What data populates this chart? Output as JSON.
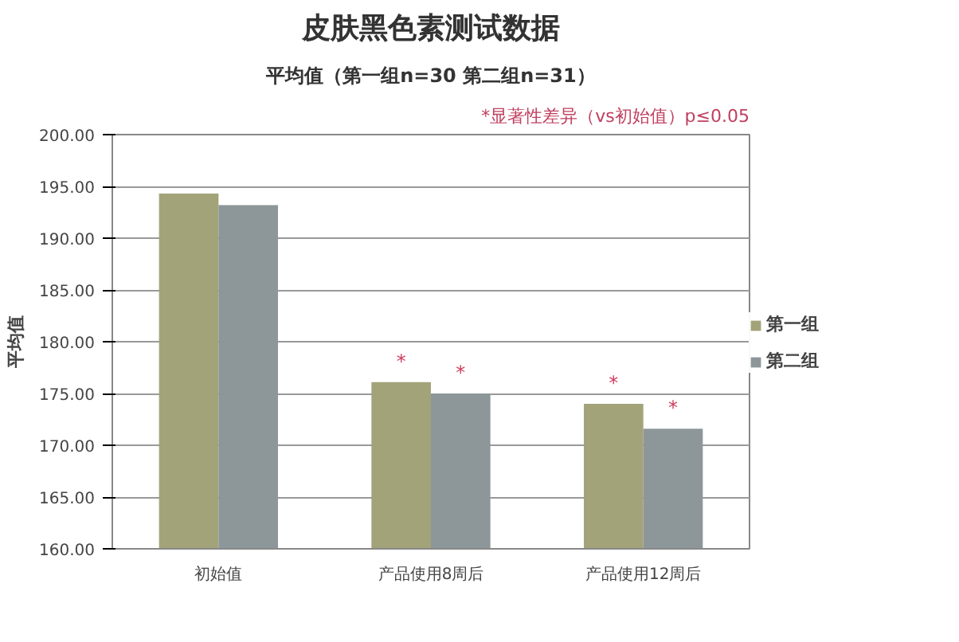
{
  "chart_data": {
    "type": "bar",
    "title": "皮肤黑色素测试数据",
    "subtitle": "平均值（第一组n=30 第二组n=31）",
    "ylabel": "平均值",
    "annotations": [
      "*显著性差异（vs初始值）p≤0.05"
    ],
    "categories": [
      "初始值",
      "产品使用8周后",
      "产品使用12周后"
    ],
    "series": [
      {
        "name": "第一组",
        "color": "#a3a37a",
        "values": [
          194.3,
          176.1,
          174.0
        ],
        "value_labels": [
          null,
          "*",
          "*"
        ]
      },
      {
        "name": "第二组",
        "color": "#8d979a",
        "values": [
          193.2,
          175.0,
          171.6
        ],
        "value_labels": [
          null,
          "*",
          "*"
        ]
      }
    ],
    "ylim": [
      160,
      200
    ],
    "yticks": [
      {
        "value": 160,
        "label": "160.00"
      },
      {
        "value": 165,
        "label": "165.00"
      },
      {
        "value": 170,
        "label": "170.00"
      },
      {
        "value": 175,
        "label": "175.00"
      },
      {
        "value": 180,
        "label": "180.00"
      },
      {
        "value": 185,
        "label": "185.00"
      },
      {
        "value": 190,
        "label": "190.00"
      },
      {
        "value": 195,
        "label": "195.00"
      },
      {
        "value": 200,
        "label": "200.00"
      }
    ],
    "grid": "y",
    "legend": "right"
  }
}
